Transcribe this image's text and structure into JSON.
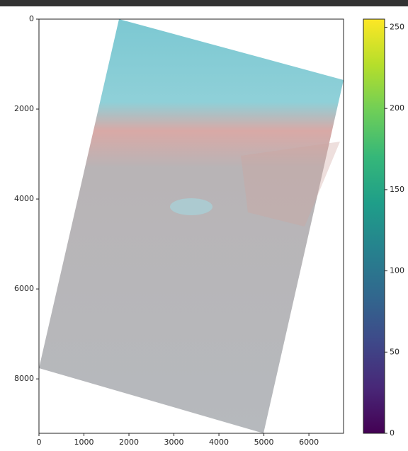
{
  "chart_data": {
    "type": "image",
    "xlim": [
      0,
      6770
    ],
    "ylim": [
      9210,
      0
    ],
    "xticks": [
      0,
      1000,
      2000,
      3000,
      4000,
      5000,
      6000
    ],
    "yticks": [
      0,
      2000,
      4000,
      6000,
      8000
    ],
    "colorbar": {
      "colormap": "viridis",
      "lim": [
        0,
        255
      ],
      "ticks": [
        0,
        50,
        100,
        150,
        200,
        250
      ]
    }
  }
}
